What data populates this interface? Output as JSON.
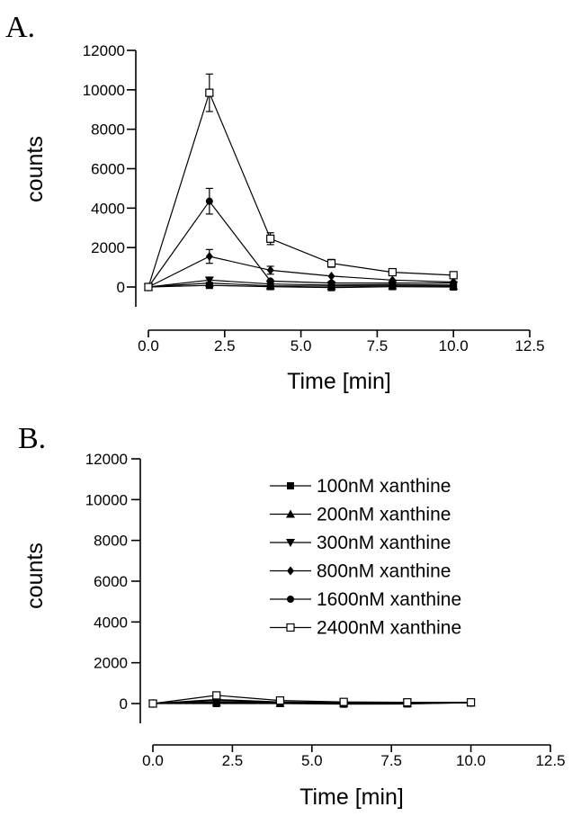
{
  "chart_data": [
    {
      "panel_label": "A.",
      "type": "line",
      "xlabel": "Time [min]",
      "ylabel": "counts",
      "xlim": [
        0,
        12.5
      ],
      "ylim": [
        0,
        12000
      ],
      "xticks": [
        "0.0",
        "2.5",
        "5.0",
        "7.5",
        "10.0",
        "12.5"
      ],
      "yticks": [
        "0",
        "2000",
        "4000",
        "6000",
        "8000",
        "10000",
        "12000"
      ],
      "grid": false,
      "legend": false,
      "x": [
        0,
        2,
        4,
        6,
        8,
        10
      ],
      "series": [
        {
          "name": "100nM xanthine",
          "marker": "square-filled",
          "values": [
            0,
            80,
            20,
            -30,
            20,
            0
          ],
          "errors": [
            0,
            0,
            0,
            0,
            0,
            0
          ]
        },
        {
          "name": "200nM xanthine",
          "marker": "triangle-up",
          "values": [
            0,
            200,
            60,
            40,
            60,
            50
          ],
          "errors": [
            0,
            0,
            0,
            0,
            0,
            0
          ]
        },
        {
          "name": "300nM xanthine",
          "marker": "triangle-down",
          "values": [
            0,
            350,
            150,
            100,
            120,
            100
          ],
          "errors": [
            0,
            0,
            0,
            0,
            0,
            0
          ]
        },
        {
          "name": "800nM xanthine",
          "marker": "diamond",
          "values": [
            0,
            1550,
            850,
            550,
            350,
            250
          ],
          "errors": [
            0,
            350,
            200,
            0,
            0,
            0
          ]
        },
        {
          "name": "1600nM xanthine",
          "marker": "circle",
          "values": [
            0,
            4350,
            300,
            200,
            200,
            200
          ],
          "errors": [
            0,
            650,
            0,
            0,
            0,
            0
          ]
        },
        {
          "name": "2400nM xanthine",
          "marker": "square-open",
          "values": [
            0,
            9850,
            2450,
            1200,
            750,
            600
          ],
          "errors": [
            0,
            950,
            300,
            200,
            0,
            0
          ]
        }
      ]
    },
    {
      "panel_label": "B.",
      "type": "line",
      "xlabel": "Time [min]",
      "ylabel": "counts",
      "xlim": [
        0,
        12.5
      ],
      "ylim": [
        0,
        12000
      ],
      "xticks": [
        "0.0",
        "2.5",
        "5.0",
        "7.5",
        "10.0",
        "12.5"
      ],
      "yticks": [
        "0",
        "2000",
        "4000",
        "6000",
        "8000",
        "10000",
        "12000"
      ],
      "grid": false,
      "legend": true,
      "legend_position": "top-right",
      "x": [
        0,
        2,
        4,
        6,
        8,
        10
      ],
      "series": [
        {
          "name": "100nM xanthine",
          "marker": "square-filled",
          "values": [
            0,
            0,
            0,
            -30,
            -20,
            50
          ],
          "errors": [
            0,
            0,
            0,
            0,
            0,
            0
          ]
        },
        {
          "name": "200nM xanthine",
          "marker": "triangle-up",
          "values": [
            0,
            50,
            20,
            0,
            0,
            30
          ],
          "errors": [
            0,
            0,
            0,
            0,
            0,
            0
          ]
        },
        {
          "name": "300nM xanthine",
          "marker": "triangle-down",
          "values": [
            0,
            80,
            40,
            20,
            30,
            40
          ],
          "errors": [
            0,
            0,
            0,
            0,
            0,
            0
          ]
        },
        {
          "name": "800nM xanthine",
          "marker": "diamond",
          "values": [
            0,
            150,
            60,
            30,
            20,
            40
          ],
          "errors": [
            0,
            0,
            0,
            0,
            0,
            0
          ]
        },
        {
          "name": "1600nM xanthine",
          "marker": "circle",
          "values": [
            0,
            200,
            80,
            50,
            40,
            50
          ],
          "errors": [
            0,
            0,
            0,
            0,
            0,
            0
          ]
        },
        {
          "name": "2400nM xanthine",
          "marker": "square-open",
          "values": [
            0,
            400,
            150,
            80,
            60,
            60
          ],
          "errors": [
            0,
            0,
            0,
            0,
            0,
            0
          ]
        }
      ]
    }
  ]
}
